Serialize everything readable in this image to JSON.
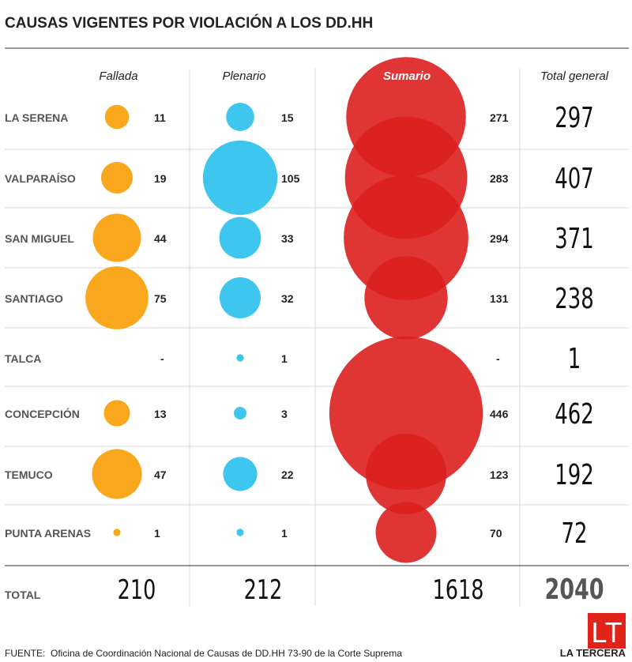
{
  "chart_data": {
    "type": "table",
    "title": "CAUSAS VIGENTES POR VIOLACIÓN A LOS DD.HH",
    "columns": [
      "Fallada",
      "Plenario",
      "Sumario",
      "Total general"
    ],
    "rows": [
      {
        "region": "LA SERENA",
        "fallada": "11",
        "plenario": "15",
        "sumario": "271",
        "total": "297"
      },
      {
        "region": "VALPARAÍSO",
        "fallada": "19",
        "plenario": "105",
        "sumario": "283",
        "total": "407"
      },
      {
        "region": "SAN MIGUEL",
        "fallada": "44",
        "plenario": "33",
        "sumario": "294",
        "total": "371"
      },
      {
        "region": "SANTIAGO",
        "fallada": "75",
        "plenario": "32",
        "sumario": "131",
        "total": "238"
      },
      {
        "region": "TALCA",
        "fallada": "-",
        "plenario": "1",
        "sumario": "-",
        "total": "1"
      },
      {
        "region": "CONCEPCIÓN",
        "fallada": "13",
        "plenario": "3",
        "sumario": "446",
        "total": "462"
      },
      {
        "region": "TEMUCO",
        "fallada": "47",
        "plenario": "22",
        "sumario": "123",
        "total": "192"
      },
      {
        "region": "PUNTA ARENAS",
        "fallada": "1",
        "plenario": "1",
        "sumario": "70",
        "total": "72"
      }
    ],
    "totals": {
      "label": "TOTAL",
      "fallada": "210",
      "plenario": "212",
      "sumario": "1618",
      "total": "2040"
    }
  },
  "colors": {
    "fallada": "#f9a71c",
    "plenario": "#3ec6ee",
    "sumario": "#dc1f1f",
    "logo": "#e2231a"
  },
  "source": {
    "label": "FUENTE:",
    "text": "Oficina de Coordinación Nacional de Causas de DD.HH 73-90 de la Corte Suprema"
  },
  "logo": {
    "mark": "LT",
    "name": "LA TERCERA"
  }
}
